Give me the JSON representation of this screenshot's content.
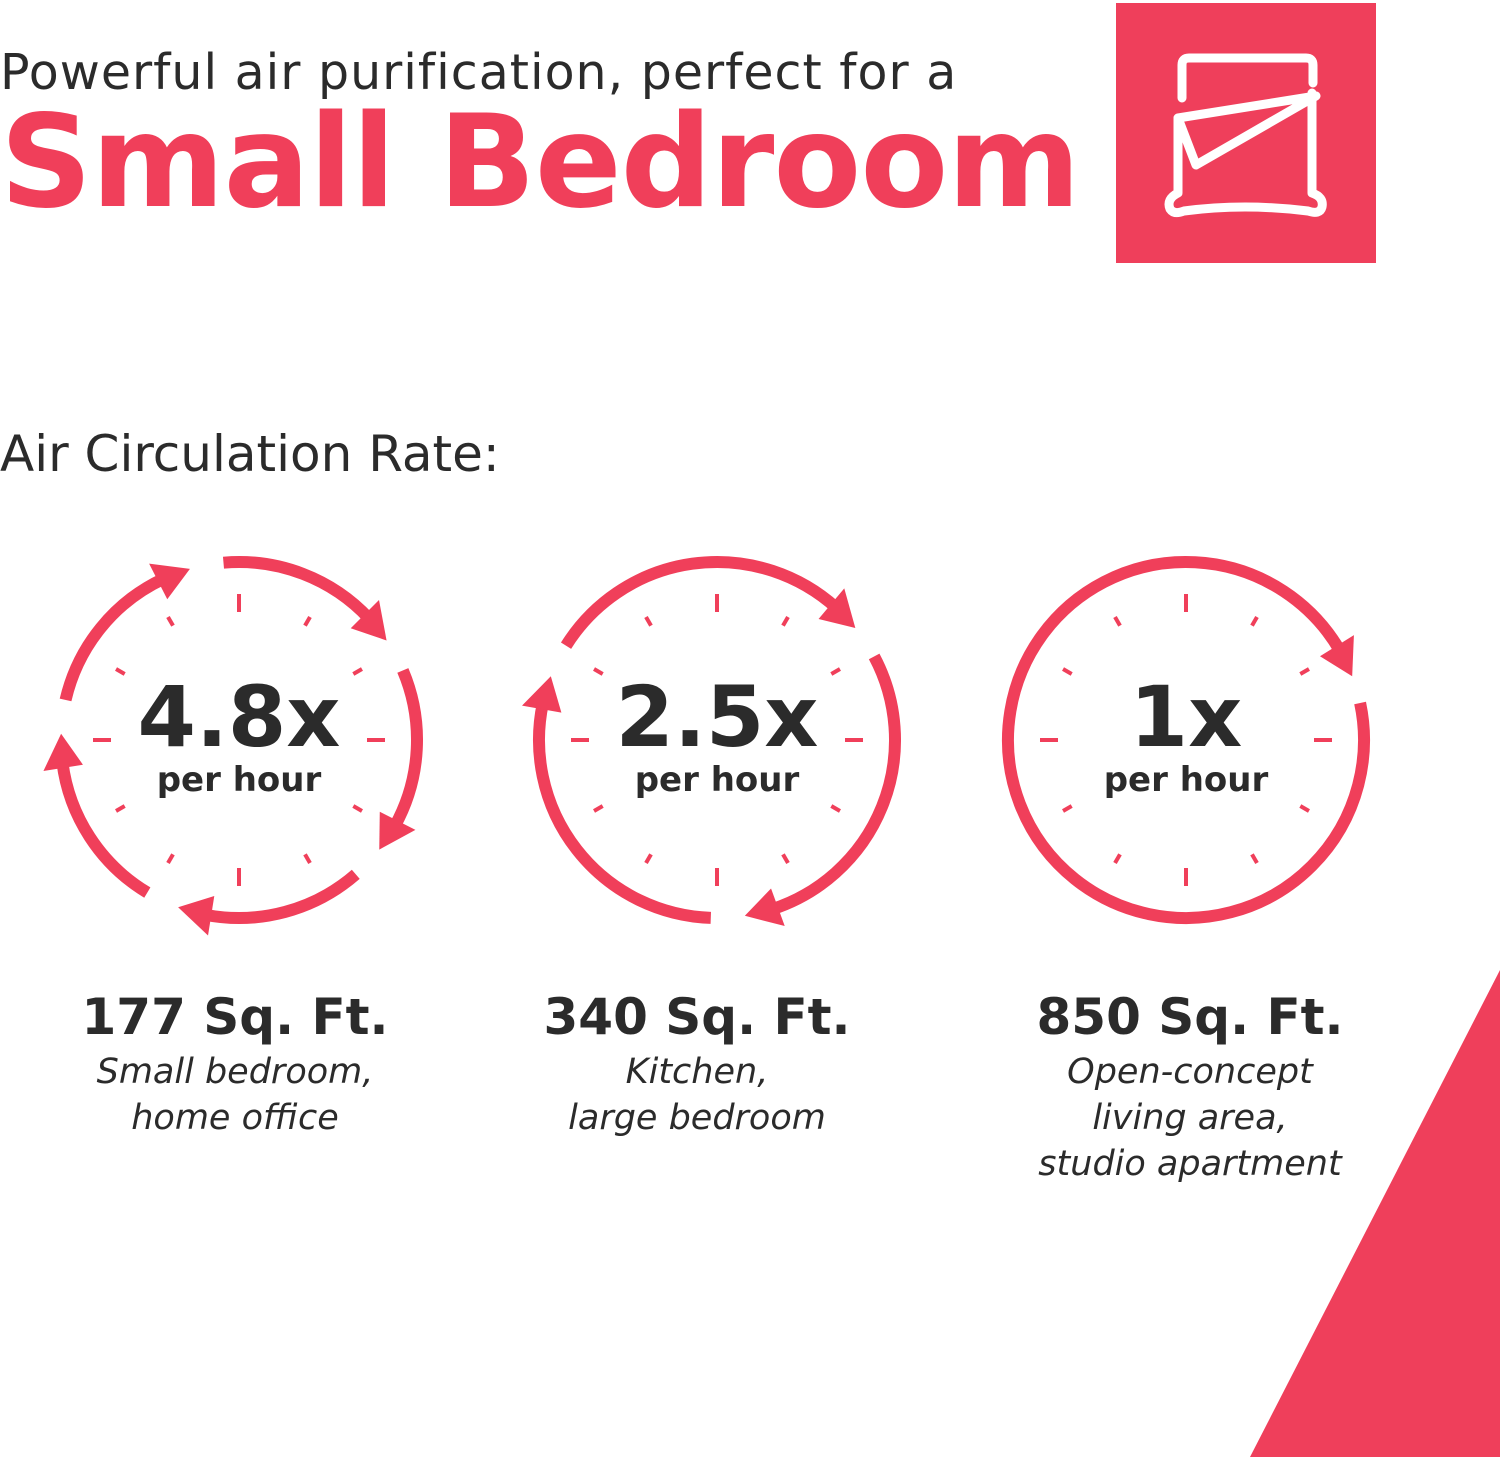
{
  "header": {
    "subtitle": "Powerful air purification, perfect for a",
    "title": "Small Bedroom",
    "icon": "bed-icon"
  },
  "section_label": "Air Circulation Rate:",
  "colors": {
    "accent": "#f03f5a",
    "text": "#2b2b2b"
  },
  "rates": [
    {
      "value": "4.8x",
      "unit": "per hour",
      "area": "177 Sq. Ft.",
      "desc": [
        "Small bedroom,",
        "home office"
      ],
      "arrows": 5
    },
    {
      "value": "2.5x",
      "unit": "per hour",
      "area": "340 Sq. Ft.",
      "desc": [
        "Kitchen,",
        "large bedroom"
      ],
      "arrows": 3
    },
    {
      "value": "1x",
      "unit": "per hour",
      "area": "850 Sq. Ft.",
      "desc": [
        "Open-concept",
        "living area,",
        "studio apartment"
      ],
      "arrows": 1
    }
  ]
}
